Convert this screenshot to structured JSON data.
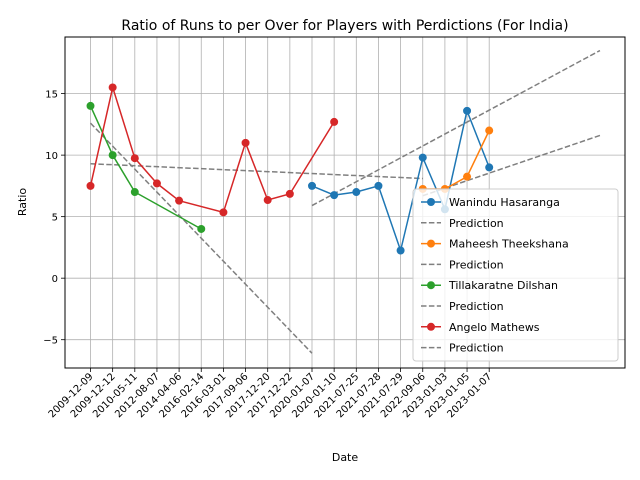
{
  "chart_data": {
    "type": "line",
    "title": "Ratio of Runs to per Over for Players with Perdictions (For India)",
    "xlabel": "Date",
    "ylabel": "Ratio",
    "grid": true,
    "legend_position": "lower-right",
    "categories": [
      "2009-12-09",
      "2009-12-12",
      "2010-05-11",
      "2012-08-07",
      "2014-04-06",
      "2016-02-14",
      "2016-03-01",
      "2017-09-06",
      "2017-12-20",
      "2017-12-22",
      "2020-01-07",
      "2020-01-10",
      "2021-07-25",
      "2021-07-28",
      "2021-07-29",
      "2022-09-06",
      "2023-01-03",
      "2023-01-05",
      "2023-01-07"
    ],
    "y_ticks": [
      -5,
      0,
      5,
      10,
      15
    ],
    "ylim": [
      -7.3,
      19.6
    ],
    "prediction_label": "Prediction",
    "series": [
      {
        "name": "Wanindu Hasaranga",
        "color": "#1f77b4",
        "points": [
          [
            10,
            7.5
          ],
          [
            11,
            6.75
          ],
          [
            12,
            7.0
          ],
          [
            13,
            7.5
          ],
          [
            14,
            2.25
          ],
          [
            15,
            9.8
          ],
          [
            16,
            5.6
          ],
          [
            17,
            13.6
          ],
          [
            18,
            9.0
          ]
        ],
        "prediction": [
          [
            10,
            5.9
          ],
          [
            23,
            18.5
          ]
        ]
      },
      {
        "name": "Maheesh Theekshana",
        "color": "#ff7f0e",
        "points": [
          [
            15,
            7.25
          ],
          [
            16,
            7.25
          ],
          [
            17,
            8.25
          ],
          [
            18,
            12.0
          ]
        ],
        "prediction": [
          [
            15,
            6.7
          ],
          [
            23,
            11.6
          ]
        ]
      },
      {
        "name": "Tillakaratne Dilshan",
        "color": "#2ca02c",
        "points": [
          [
            0,
            14.0
          ],
          [
            1,
            10.0
          ],
          [
            2,
            7.0
          ],
          [
            5,
            4.0
          ]
        ],
        "prediction": [
          [
            0,
            12.6
          ],
          [
            10,
            -6.1
          ]
        ]
      },
      {
        "name": "Angelo Mathews",
        "color": "#d62728",
        "points": [
          [
            0,
            7.5
          ],
          [
            1,
            15.5
          ],
          [
            2,
            9.75
          ],
          [
            3,
            7.7
          ],
          [
            4,
            6.3
          ],
          [
            6,
            5.35
          ],
          [
            7,
            11.0
          ],
          [
            8,
            6.35
          ],
          [
            9,
            6.85
          ],
          [
            11,
            12.7
          ]
        ],
        "prediction": [
          [
            0,
            9.3
          ],
          [
            15,
            8.1
          ]
        ]
      }
    ]
  }
}
